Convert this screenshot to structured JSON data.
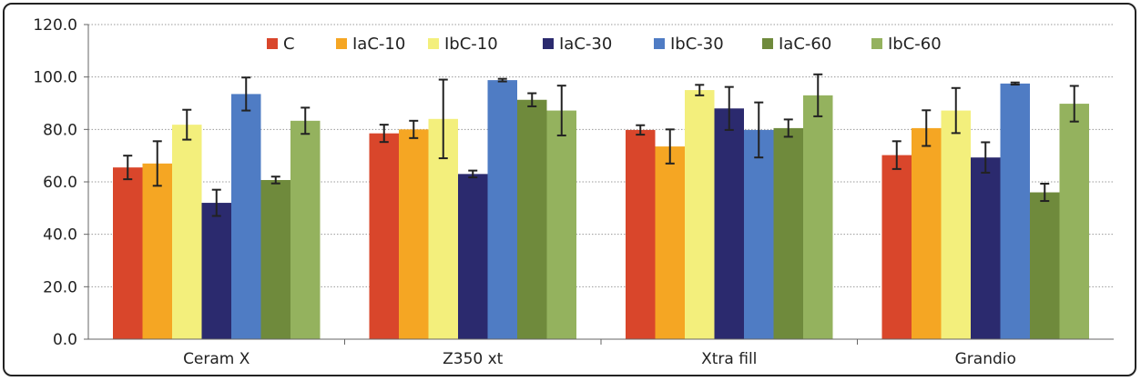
{
  "chart_data": {
    "type": "bar",
    "title": "",
    "xlabel": "",
    "ylabel": "",
    "ylim": [
      0,
      120
    ],
    "yticks": [
      "0.0",
      "20.0",
      "40.0",
      "60.0",
      "80.0",
      "100.0",
      "120.0"
    ],
    "grid": true,
    "legend_position": "top",
    "categories": [
      "Ceram X",
      "Z350 xt",
      "Xtra fill",
      "Grandio"
    ],
    "series": [
      {
        "name": "C",
        "color": "#d9462b",
        "values": [
          65.5,
          78.5,
          79.8,
          70.2
        ],
        "errors": [
          4.5,
          3.3,
          1.8,
          5.3
        ]
      },
      {
        "name": "IaC-10",
        "color": "#f5a623",
        "values": [
          67.0,
          80.0,
          73.5,
          80.5
        ],
        "errors": [
          8.5,
          3.3,
          6.5,
          6.8
        ]
      },
      {
        "name": "IbC-10",
        "color": "#f3ef7c",
        "values": [
          81.8,
          84.0,
          95.0,
          87.2
        ],
        "errors": [
          5.7,
          15.0,
          2.0,
          8.6
        ]
      },
      {
        "name": "IaC-30",
        "color": "#2b2a6e",
        "values": [
          52.0,
          63.0,
          88.0,
          69.3
        ],
        "errors": [
          5.0,
          1.3,
          8.2,
          5.8
        ]
      },
      {
        "name": "IbC-30",
        "color": "#4f7cc4",
        "values": [
          93.5,
          98.8,
          79.8,
          97.5
        ],
        "errors": [
          6.3,
          0.5,
          10.5,
          0.4
        ]
      },
      {
        "name": "IaC-60",
        "color": "#6f8a3c",
        "values": [
          60.7,
          91.3,
          80.5,
          56.0
        ],
        "errors": [
          1.3,
          2.5,
          3.3,
          3.3
        ]
      },
      {
        "name": "IbC-60",
        "color": "#94b25e",
        "values": [
          83.3,
          87.2,
          93.0,
          89.8
        ],
        "errors": [
          5.0,
          9.5,
          8.0,
          6.8
        ]
      }
    ]
  }
}
